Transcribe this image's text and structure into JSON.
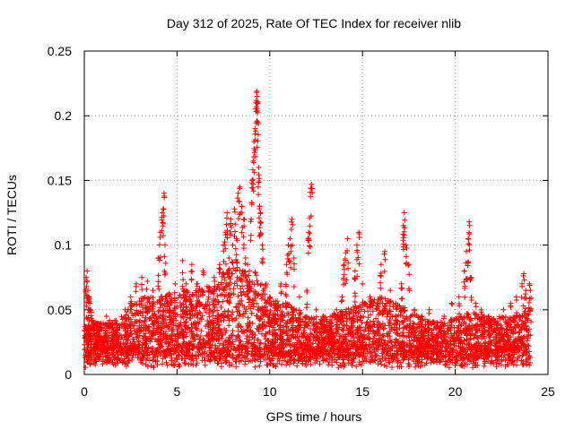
{
  "chart_data": {
    "type": "scatter",
    "title": "Day 312 of 2025, Rate Of TEC Index for receiver nlib",
    "xlabel": "GPS time / hours",
    "ylabel": "ROTI / TECUs",
    "xlim": [
      0,
      25
    ],
    "ylim": [
      0,
      0.25
    ],
    "xticks": [
      0,
      5,
      10,
      15,
      20,
      25
    ],
    "xtick_labels": [
      "0",
      "5",
      "10",
      "15",
      "20",
      "25"
    ],
    "yticks": [
      0,
      0.05,
      0.1,
      0.15,
      0.2,
      0.25
    ],
    "ytick_labels": [
      "0",
      "0.05",
      "0.1",
      "0.15",
      "0.2",
      "0.25"
    ],
    "grid": true,
    "marker": "+",
    "color": "#ff0000",
    "series": [
      {
        "name": "ROTI",
        "points": [
          [
            0.1,
            0.075
          ],
          [
            0.15,
            0.08
          ],
          [
            0.2,
            0.065
          ],
          [
            0.25,
            0.06
          ],
          [
            0.3,
            0.055
          ],
          [
            0.35,
            0.05
          ],
          [
            0.5,
            0.04
          ],
          [
            0.8,
            0.035
          ],
          [
            1.2,
            0.045
          ],
          [
            1.5,
            0.04
          ],
          [
            1.8,
            0.035
          ],
          [
            2.2,
            0.05
          ],
          [
            2.5,
            0.06
          ],
          [
            2.8,
            0.07
          ],
          [
            3.1,
            0.075
          ],
          [
            3.4,
            0.072
          ],
          [
            3.7,
            0.065
          ],
          [
            4.0,
            0.09
          ],
          [
            4.1,
            0.11
          ],
          [
            4.2,
            0.125
          ],
          [
            4.25,
            0.128
          ],
          [
            4.3,
            0.14
          ],
          [
            4.35,
            0.1
          ],
          [
            4.6,
            0.06
          ],
          [
            4.9,
            0.07
          ],
          [
            5.3,
            0.088
          ],
          [
            5.5,
            0.07
          ],
          [
            5.8,
            0.085
          ],
          [
            6.1,
            0.07
          ],
          [
            6.4,
            0.08
          ],
          [
            6.7,
            0.06
          ],
          [
            7.0,
            0.075
          ],
          [
            7.3,
            0.085
          ],
          [
            7.5,
            0.1
          ],
          [
            7.6,
            0.11
          ],
          [
            7.7,
            0.125
          ],
          [
            7.8,
            0.09
          ],
          [
            7.9,
            0.12
          ],
          [
            8.0,
            0.1
          ],
          [
            8.1,
            0.128
          ],
          [
            8.2,
            0.105
          ],
          [
            8.3,
            0.14
          ],
          [
            8.4,
            0.145
          ],
          [
            8.5,
            0.13
          ],
          [
            8.6,
            0.12
          ],
          [
            8.7,
            0.09
          ],
          [
            8.8,
            0.085
          ],
          [
            8.9,
            0.08
          ],
          [
            9.0,
            0.12
          ],
          [
            9.05,
            0.15
          ],
          [
            9.1,
            0.165
          ],
          [
            9.15,
            0.18
          ],
          [
            9.2,
            0.19
          ],
          [
            9.25,
            0.21
          ],
          [
            9.3,
            0.219
          ],
          [
            9.32,
            0.215
          ],
          [
            9.35,
            0.195
          ],
          [
            9.4,
            0.16
          ],
          [
            9.45,
            0.13
          ],
          [
            9.5,
            0.125
          ],
          [
            9.6,
            0.1
          ],
          [
            9.8,
            0.07
          ],
          [
            10.0,
            0.06
          ],
          [
            10.3,
            0.055
          ],
          [
            10.6,
            0.07
          ],
          [
            10.9,
            0.085
          ],
          [
            11.0,
            0.1
          ],
          [
            11.1,
            0.105
          ],
          [
            11.2,
            0.12
          ],
          [
            11.3,
            0.09
          ],
          [
            11.6,
            0.06
          ],
          [
            12.0,
            0.065
          ],
          [
            12.1,
            0.11
          ],
          [
            12.15,
            0.121
          ],
          [
            12.2,
            0.144
          ],
          [
            12.25,
            0.147
          ],
          [
            12.5,
            0.05
          ],
          [
            12.9,
            0.045
          ],
          [
            13.3,
            0.04
          ],
          [
            13.6,
            0.05
          ],
          [
            13.9,
            0.06
          ],
          [
            14.0,
            0.085
          ],
          [
            14.1,
            0.094
          ],
          [
            14.2,
            0.105
          ],
          [
            14.4,
            0.05
          ],
          [
            14.6,
            0.08
          ],
          [
            14.7,
            0.1
          ],
          [
            14.8,
            0.11
          ],
          [
            15.0,
            0.07
          ],
          [
            15.4,
            0.06
          ],
          [
            15.8,
            0.055
          ],
          [
            16.0,
            0.085
          ],
          [
            16.2,
            0.095
          ],
          [
            16.5,
            0.065
          ],
          [
            16.8,
            0.055
          ],
          [
            17.1,
            0.07
          ],
          [
            17.2,
            0.115
          ],
          [
            17.25,
            0.125
          ],
          [
            17.35,
            0.1
          ],
          [
            17.5,
            0.085
          ],
          [
            17.8,
            0.05
          ],
          [
            18.2,
            0.045
          ],
          [
            18.6,
            0.05
          ],
          [
            19.0,
            0.04
          ],
          [
            19.4,
            0.045
          ],
          [
            19.8,
            0.055
          ],
          [
            20.2,
            0.06
          ],
          [
            20.5,
            0.08
          ],
          [
            20.6,
            0.095
          ],
          [
            20.7,
            0.105
          ],
          [
            20.75,
            0.118
          ],
          [
            20.85,
            0.075
          ],
          [
            21.1,
            0.055
          ],
          [
            21.4,
            0.05
          ],
          [
            21.8,
            0.045
          ],
          [
            22.2,
            0.04
          ],
          [
            22.6,
            0.05
          ],
          [
            23.0,
            0.055
          ],
          [
            23.3,
            0.06
          ],
          [
            23.6,
            0.07
          ],
          [
            23.7,
            0.078
          ],
          [
            23.8,
            0.065
          ],
          [
            24.0,
            0.07
          ],
          [
            24.05,
            0.065
          ]
        ],
        "band": {
          "x_range": [
            0,
            24.05
          ],
          "y_floor": [
            0.005,
            0.02
          ],
          "envelope": [
            [
              0,
              0.045
            ],
            [
              1,
              0.04
            ],
            [
              2,
              0.045
            ],
            [
              2.5,
              0.055
            ],
            [
              3,
              0.06
            ],
            [
              4,
              0.06
            ],
            [
              5,
              0.065
            ],
            [
              6,
              0.065
            ],
            [
              7,
              0.07
            ],
            [
              8,
              0.085
            ],
            [
              8.5,
              0.09
            ],
            [
              9,
              0.085
            ],
            [
              10,
              0.06
            ],
            [
              11,
              0.055
            ],
            [
              12,
              0.045
            ],
            [
              13,
              0.045
            ],
            [
              14,
              0.05
            ],
            [
              15,
              0.055
            ],
            [
              16,
              0.06
            ],
            [
              17,
              0.055
            ],
            [
              18,
              0.045
            ],
            [
              19,
              0.04
            ],
            [
              20,
              0.045
            ],
            [
              21,
              0.05
            ],
            [
              22,
              0.045
            ],
            [
              23,
              0.045
            ],
            [
              24,
              0.05
            ]
          ],
          "count": 4200
        }
      }
    ]
  }
}
